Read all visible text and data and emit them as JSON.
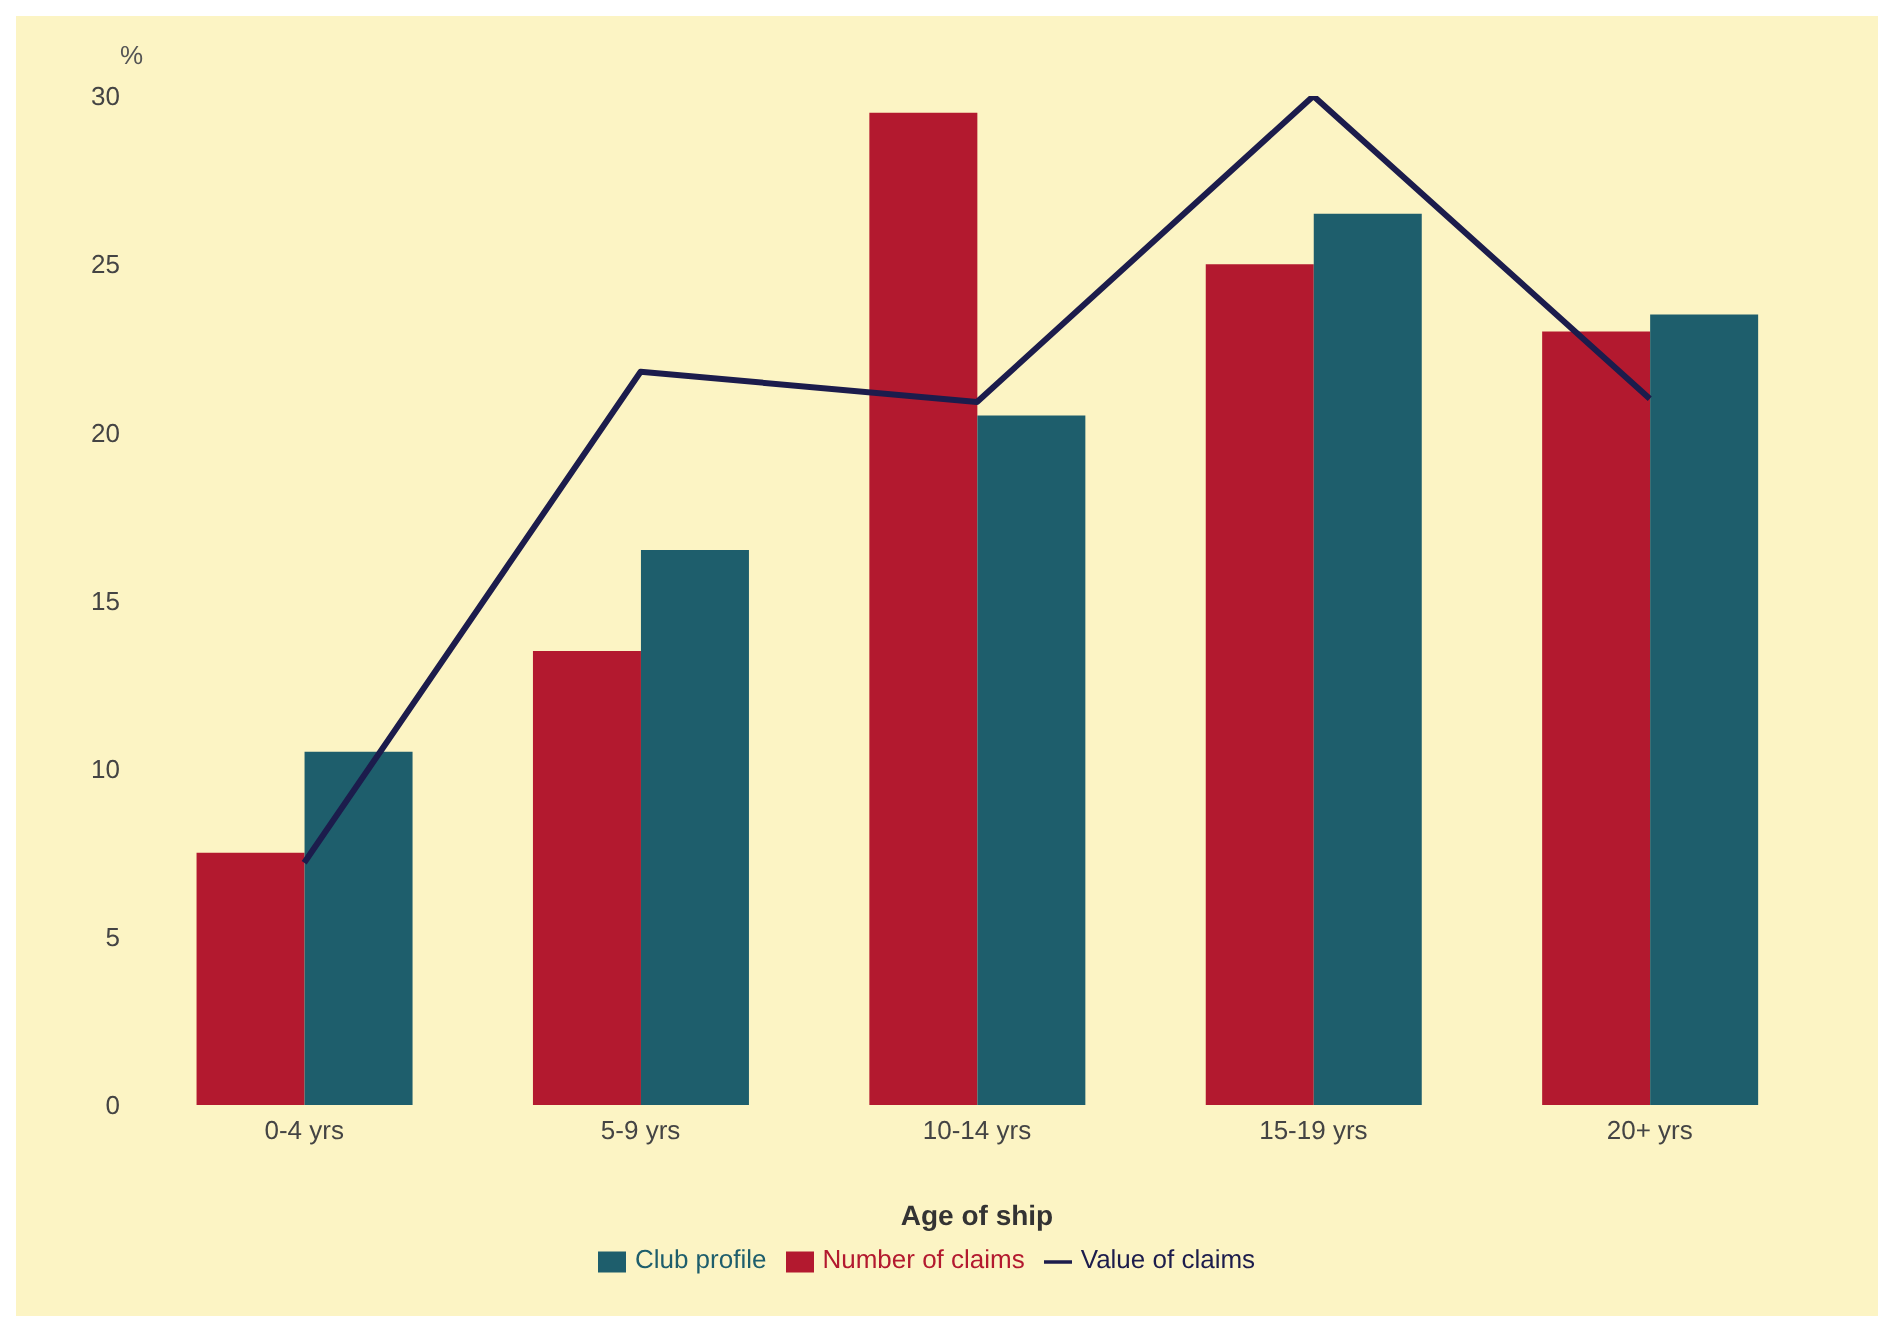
{
  "chart_data": {
    "type": "bar",
    "xlabel": "Age of ship",
    "ylabel": "%",
    "categories": [
      "0-4 yrs",
      "5-9 yrs",
      "10-14 yrs",
      "15-19 yrs",
      "20+ yrs"
    ],
    "series": [
      {
        "name": "Number of claims",
        "color": "#b3192f",
        "values": [
          7.5,
          13.5,
          29.5,
          25,
          23
        ]
      },
      {
        "name": "Club profile",
        "color": "#1e5e6c",
        "values": [
          10.5,
          16.5,
          20.5,
          26.5,
          23.5
        ]
      },
      {
        "name": "Value of claims",
        "type": "line",
        "color": "#1c1c4c",
        "values": [
          7.2,
          21.8,
          20.9,
          30,
          21
        ],
        "marker": "none"
      }
    ],
    "ylim": [
      0,
      30
    ],
    "yticks": [
      0,
      5,
      10,
      15,
      20,
      25,
      30
    ],
    "grid": false,
    "legend": "bottom"
  }
}
